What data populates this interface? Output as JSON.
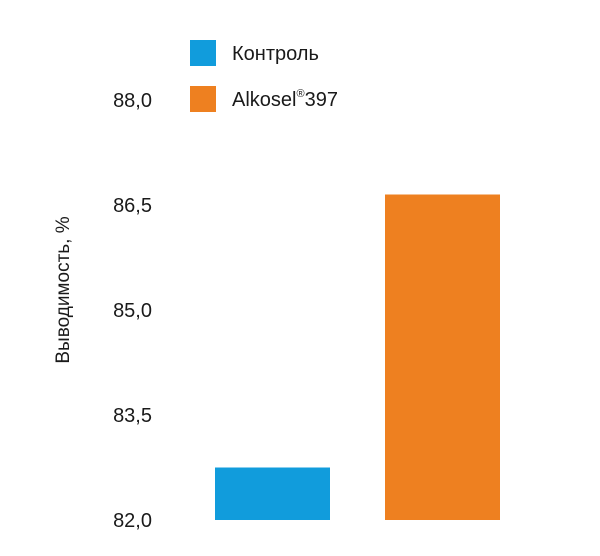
{
  "chart_data": {
    "type": "bar",
    "ylabel": "Выводимость, %",
    "ylim": [
      82.0,
      88.0
    ],
    "yticks": [
      "82,0",
      "83,5",
      "85,0",
      "86,5",
      "88,0"
    ],
    "ytick_values": [
      82.0,
      83.5,
      85.0,
      86.5,
      88.0
    ],
    "grid": false,
    "legend_position": "top",
    "series": [
      {
        "name": "Контроль",
        "value": 82.75,
        "color": "#119cdc"
      },
      {
        "name": "Alkosel",
        "name_sup": "®",
        "name_suffix": "397",
        "value": 86.65,
        "color": "#ee8020"
      }
    ]
  }
}
